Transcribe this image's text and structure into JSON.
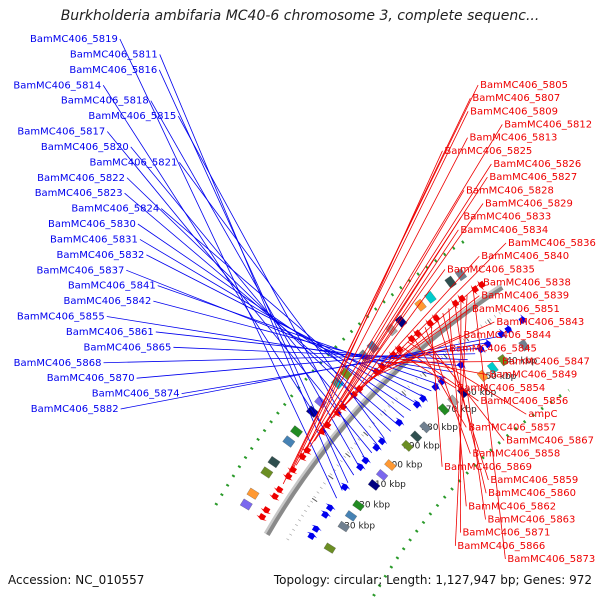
{
  "title": "Burkholderia ambifaria MC40-6 chromosome 3, complete sequenc...",
  "accession": "Accession: NC_010557",
  "summary": "Topology: circular; Length: 1,127,947 bp; Genes: 972",
  "colors": {
    "backbone": "#8a8a8a",
    "reverse_strand": "#0000ee",
    "forward_strand": "#ee0000",
    "gc_dots": "#2a9a2a",
    "cog_colors": [
      "#7b68ee",
      "#ff9933",
      "#00cccc",
      "#6b8e23",
      "#2f4f4f",
      "#708090",
      "#4682b4",
      "#228b22",
      "#a9a9a9",
      "#000080"
    ]
  },
  "tick_labels": [
    "340 kbp",
    "350 kbp",
    "360 kbp",
    "370 kbp",
    "380 kbp",
    "390 kbp",
    "400 kbp",
    "410 kbp",
    "420 kbp",
    "430 kbp"
  ],
  "reverse_labels": [
    "BamMC406_5819",
    "BamMC406_5811",
    "BamMC406_5816",
    "BamMC406_5814",
    "BamMC406_5818",
    "BamMC406_5815",
    "BamMC406_5817",
    "BamMC406_5820",
    "BamMC406_5821",
    "BamMC406_5822",
    "BamMC406_5823",
    "BamMC406_5824",
    "BamMC406_5830",
    "BamMC406_5831",
    "BamMC406_5832",
    "BamMC406_5837",
    "BamMC406_5841",
    "BamMC406_5842",
    "BamMC406_5855",
    "BamMC406_5861",
    "BamMC406_5865",
    "BamMC406_5868",
    "BamMC406_5870",
    "BamMC406_5874",
    "BamMC406_5882"
  ],
  "forward_labels": [
    "BamMC406_5805",
    "BamMC406_5807",
    "BamMC406_5809",
    "BamMC406_5812",
    "BamMC406_5813",
    "BamMC406_5825",
    "BamMC406_5826",
    "BamMC406_5827",
    "BamMC406_5828",
    "BamMC406_5829",
    "BamMC406_5833",
    "BamMC406_5834",
    "BamMC406_5836",
    "BamMC406_5840",
    "BamMC406_5835",
    "BamMC406_5838",
    "BamMC406_5839",
    "BamMC406_5851",
    "BamMC406_5843",
    "BamMC406_5844",
    "BamMC406_5845",
    "BamMC406_5847",
    "BamMC406_5849",
    "BamMC406_5854",
    "BamMC406_5856",
    "ampC",
    "BamMC406_5857",
    "BamMC406_5867",
    "BamMC406_5858",
    "BamMC406_5869",
    "BamMC406_5859",
    "BamMC406_5860",
    "BamMC406_5862",
    "BamMC406_5863",
    "BamMC406_5871",
    "BamMC406_5866",
    "BamMC406_5873"
  ]
}
